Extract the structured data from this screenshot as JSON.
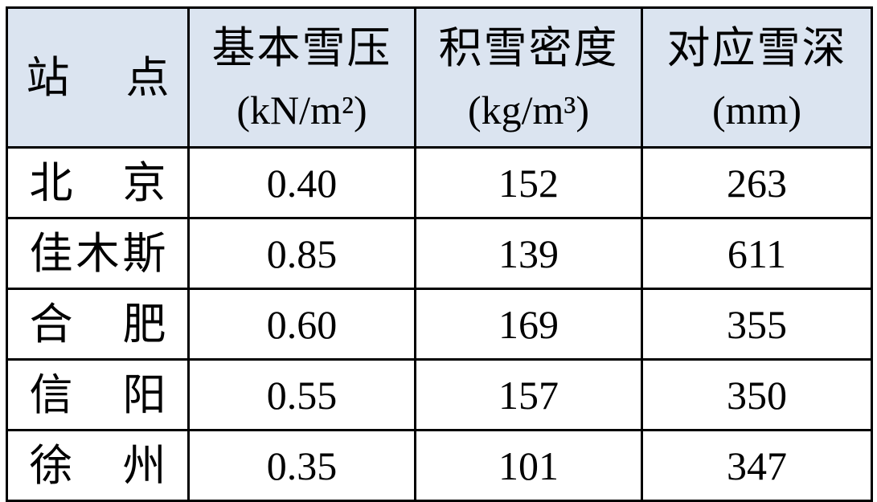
{
  "chart_data": {
    "type": "table",
    "header": {
      "station": "站 点",
      "col1_title": "基本雪压",
      "col1_unit": "(kN/m²)",
      "col2_title": "积雪密度",
      "col2_unit": "(kg/m³)",
      "col3_title": "对应雪深",
      "col3_unit": "(mm)"
    },
    "columns_meaning": [
      "station",
      "basic snow pressure (kN/m²)",
      "snow density (kg/m³)",
      "corresponding snow depth (mm)"
    ],
    "rows": [
      {
        "station": "北 京",
        "pressure": "0.40",
        "density": "152",
        "depth": "263"
      },
      {
        "station": "佳木斯",
        "pressure": "0.85",
        "density": "139",
        "depth": "611"
      },
      {
        "station": "合 肥",
        "pressure": "0.60",
        "density": "169",
        "depth": "355"
      },
      {
        "station": "信 阳",
        "pressure": "0.55",
        "density": "157",
        "depth": "350"
      },
      {
        "station": "徐 州",
        "pressure": "0.35",
        "density": "101",
        "depth": "347"
      }
    ]
  },
  "colors": {
    "header_bg": "#dbe4f0",
    "border": "#000000",
    "text": "#000000",
    "page_bg": "#ffffff"
  }
}
